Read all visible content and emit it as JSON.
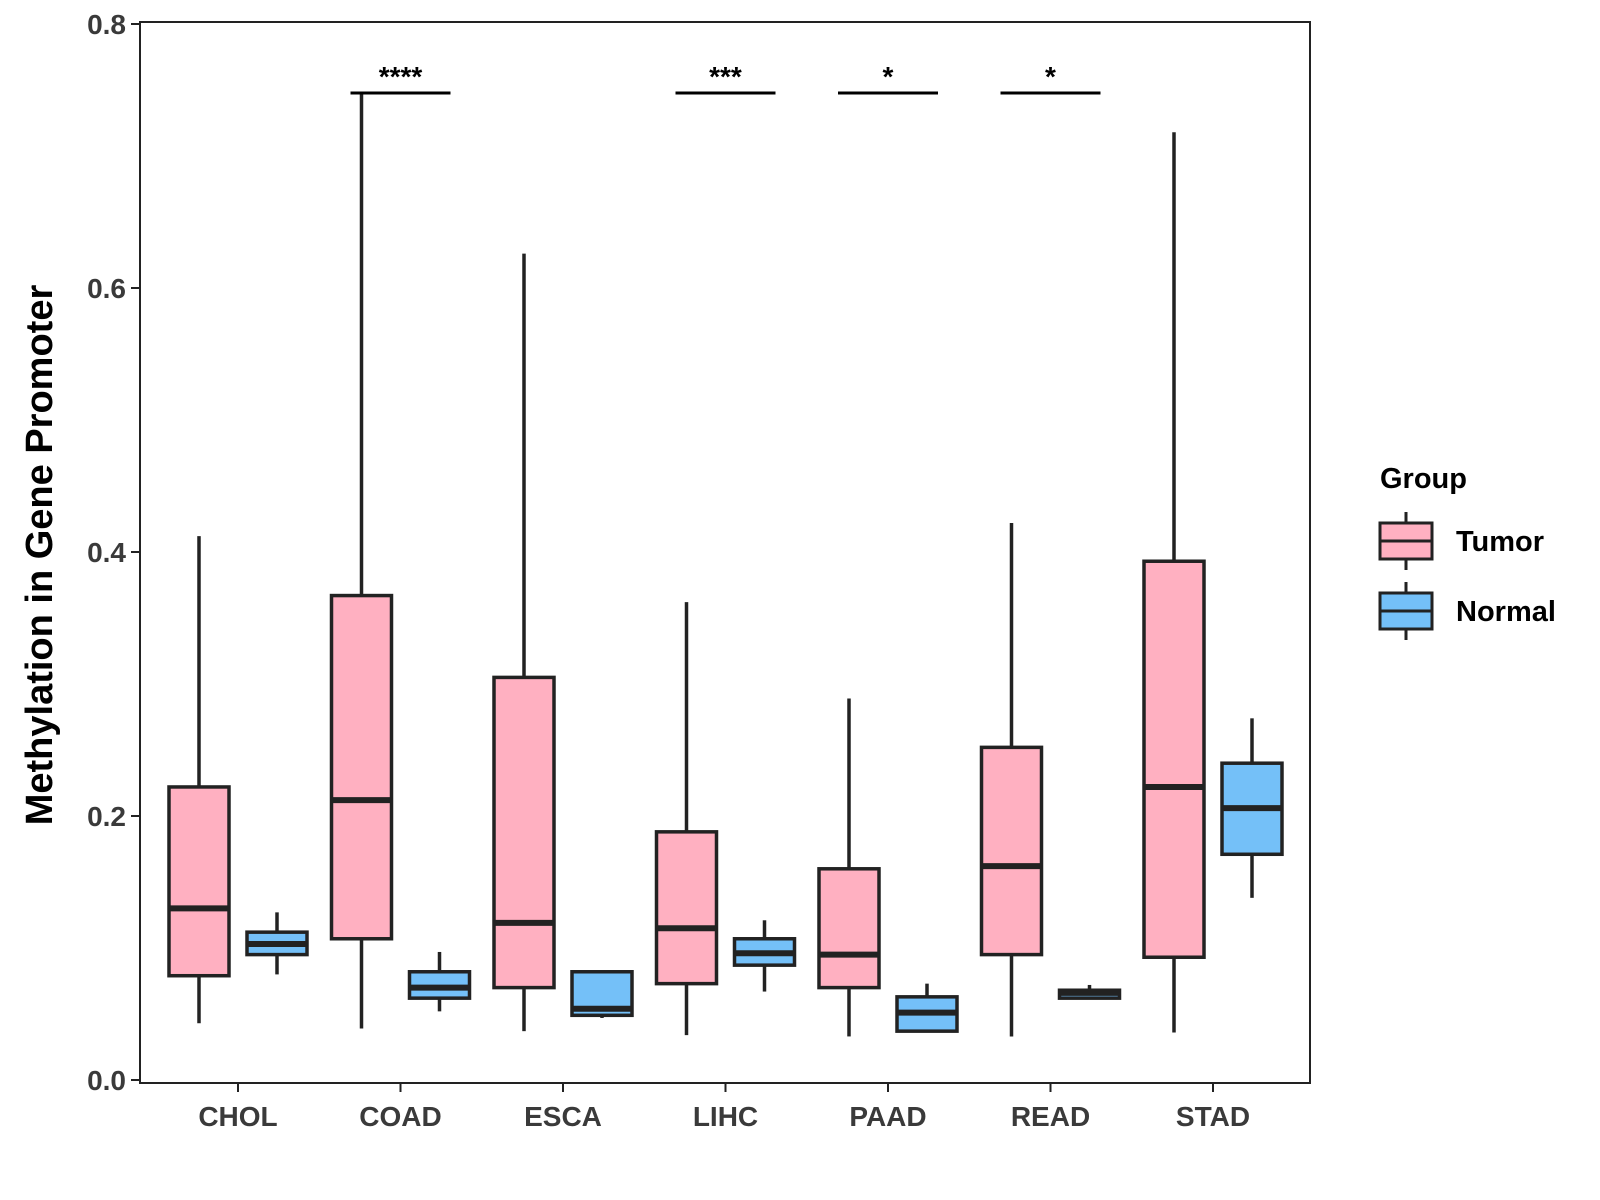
{
  "chart_data": {
    "type": "boxplot",
    "title": "",
    "xlabel": "",
    "ylabel": "Methylation in Gene Promoter",
    "ylim": [
      0,
      0.8
    ],
    "yticks": [
      "0.0",
      "0.2",
      "0.4",
      "0.6",
      "0.8"
    ],
    "categories": [
      "CHOL",
      "COAD",
      "ESCA",
      "LIHC",
      "PAAD",
      "READ",
      "STAD"
    ],
    "legend": {
      "title": "Group",
      "position": "right",
      "entries": [
        "Tumor",
        "Normal"
      ]
    },
    "colors": {
      "Tumor": "#FFB0C1",
      "Normal": "#74C0F8",
      "stroke": "#222222"
    },
    "series": [
      {
        "name": "Tumor",
        "boxes": [
          {
            "category": "CHOL",
            "min": 0.043,
            "q1": 0.079,
            "median": 0.13,
            "q3": 0.222,
            "max": 0.412
          },
          {
            "category": "COAD",
            "min": 0.039,
            "q1": 0.107,
            "median": 0.212,
            "q3": 0.367,
            "max": 0.748
          },
          {
            "category": "ESCA",
            "min": 0.037,
            "q1": 0.07,
            "median": 0.119,
            "q3": 0.305,
            "max": 0.626
          },
          {
            "category": "LIHC",
            "min": 0.034,
            "q1": 0.073,
            "median": 0.115,
            "q3": 0.188,
            "max": 0.362
          },
          {
            "category": "PAAD",
            "min": 0.033,
            "q1": 0.07,
            "median": 0.095,
            "q3": 0.16,
            "max": 0.289
          },
          {
            "category": "READ",
            "min": 0.033,
            "q1": 0.095,
            "median": 0.162,
            "q3": 0.252,
            "max": 0.422
          },
          {
            "category": "STAD",
            "min": 0.036,
            "q1": 0.093,
            "median": 0.222,
            "q3": 0.393,
            "max": 0.718
          }
        ]
      },
      {
        "name": "Normal",
        "boxes": [
          {
            "category": "CHOL",
            "min": 0.08,
            "q1": 0.095,
            "median": 0.103,
            "q3": 0.112,
            "max": 0.127
          },
          {
            "category": "COAD",
            "min": 0.052,
            "q1": 0.062,
            "median": 0.07,
            "q3": 0.082,
            "max": 0.097
          },
          {
            "category": "ESCA",
            "min": 0.047,
            "q1": 0.049,
            "median": 0.054,
            "q3": 0.082,
            "max": 0.082
          },
          {
            "category": "LIHC",
            "min": 0.067,
            "q1": 0.087,
            "median": 0.096,
            "q3": 0.107,
            "max": 0.121
          },
          {
            "category": "PAAD",
            "min": 0.036,
            "q1": 0.037,
            "median": 0.051,
            "q3": 0.063,
            "max": 0.073
          },
          {
            "category": "READ",
            "min": 0.062,
            "q1": 0.062,
            "median": 0.066,
            "q3": 0.068,
            "max": 0.072
          },
          {
            "category": "STAD",
            "min": 0.138,
            "q1": 0.171,
            "median": 0.206,
            "q3": 0.24,
            "max": 0.274
          }
        ]
      }
    ],
    "annotations": [
      {
        "category": "COAD",
        "label": "****"
      },
      {
        "category": "LIHC",
        "label": "***"
      },
      {
        "category": "PAAD",
        "label": "*"
      },
      {
        "category": "READ",
        "label": "*"
      }
    ]
  }
}
